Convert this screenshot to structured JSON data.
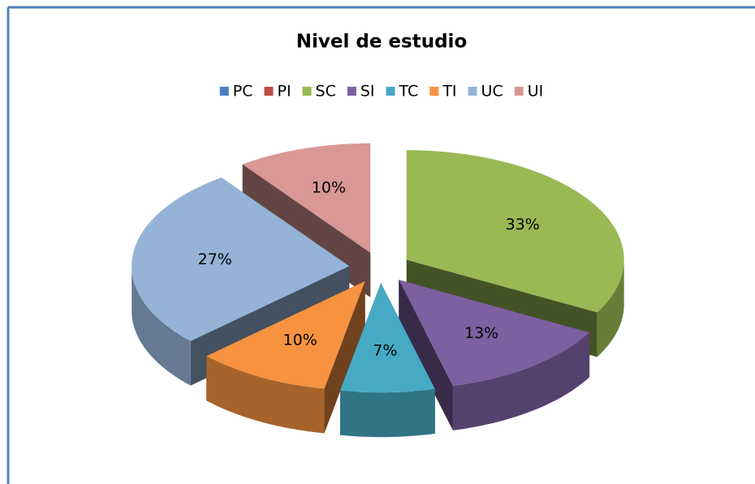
{
  "chart_data": {
    "type": "pie3d",
    "title": "Nivel de estudio",
    "categories": [
      "PC",
      "PI",
      "SC",
      "SI",
      "TC",
      "TI",
      "UC",
      "UI"
    ],
    "values": [
      0,
      0,
      33,
      13,
      7,
      10,
      27,
      10
    ],
    "value_labels": [
      null,
      null,
      "33%",
      "13%",
      "7%",
      "10%",
      "27%",
      "10%"
    ],
    "colors": [
      "#4a7ebb",
      "#be4b48",
      "#98b954",
      "#7d60a0",
      "#46aac5",
      "#f69240",
      "#95b3d7",
      "#d99795"
    ],
    "legend": "top"
  }
}
